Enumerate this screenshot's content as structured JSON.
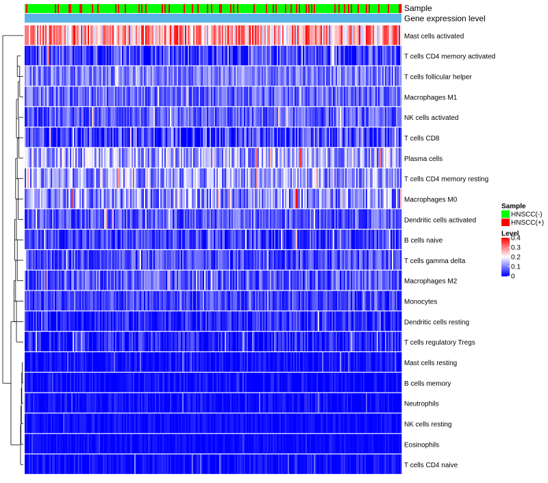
{
  "chart_data": {
    "type": "heatmap",
    "title": "",
    "annotation_tracks": [
      {
        "label": "Sample",
        "kind": "categorical"
      },
      {
        "label": "Gene expression level",
        "kind": "constant",
        "color": "#5ab4e5"
      }
    ],
    "rows": [
      {
        "label": "Mast cells activated",
        "mean": 0.27,
        "spread": 0.12
      },
      {
        "label": "T cells CD4 memory activated",
        "mean": 0.05,
        "spread": 0.08
      },
      {
        "label": "T cells follicular helper",
        "mean": 0.1,
        "spread": 0.06
      },
      {
        "label": "Macrophages M1",
        "mean": 0.08,
        "spread": 0.06
      },
      {
        "label": "NK cells activated",
        "mean": 0.07,
        "spread": 0.06
      },
      {
        "label": "T cells CD8",
        "mean": 0.05,
        "spread": 0.08
      },
      {
        "label": "Plasma cells",
        "mean": 0.13,
        "spread": 0.09
      },
      {
        "label": "T cells CD4 memory resting",
        "mean": 0.12,
        "spread": 0.08
      },
      {
        "label": "Macrophages M0",
        "mean": 0.11,
        "spread": 0.09
      },
      {
        "label": "Dendritic cells activated",
        "mean": 0.07,
        "spread": 0.06
      },
      {
        "label": "B cells naive",
        "mean": 0.05,
        "spread": 0.06
      },
      {
        "label": "T cells gamma delta",
        "mean": 0.06,
        "spread": 0.06
      },
      {
        "label": "Macrophages M2",
        "mean": 0.07,
        "spread": 0.07
      },
      {
        "label": "Monocytes",
        "mean": 0.05,
        "spread": 0.05
      },
      {
        "label": "Dendritic cells resting",
        "mean": 0.03,
        "spread": 0.05
      },
      {
        "label": "T cells regulatory  Tregs",
        "mean": 0.03,
        "spread": 0.05
      },
      {
        "label": "Mast cells resting",
        "mean": 0.01,
        "spread": 0.03
      },
      {
        "label": "B cells memory",
        "mean": 0.01,
        "spread": 0.03
      },
      {
        "label": "Neutrophils",
        "mean": 0.01,
        "spread": 0.03
      },
      {
        "label": "NK cells resting",
        "mean": 0.01,
        "spread": 0.02
      },
      {
        "label": "Eosinophils",
        "mean": 0.005,
        "spread": 0.02
      },
      {
        "label": "T cells CD4 naive",
        "mean": 0.01,
        "spread": 0.03
      }
    ],
    "n_samples": 275,
    "value_range": [
      0,
      0.4
    ],
    "color_scale": {
      "low": "#0000ff",
      "mid": "#ffffff",
      "high": "#ff0000",
      "mid_value": 0.2
    },
    "legend": {
      "sample_title": "Sample",
      "sample_items": [
        {
          "label": "HNSCC(-)",
          "color": "#00ff00"
        },
        {
          "label": "HNSCC(+)",
          "color": "#ff0000"
        }
      ],
      "level_title": "Level",
      "level_ticks": [
        "0.4",
        "0.3",
        "0.2",
        "0.1",
        "0"
      ],
      "level_tick_values": [
        0.4,
        0.3,
        0.2,
        0.1,
        0
      ],
      "placement": "right"
    },
    "row_dendrogram": true
  }
}
